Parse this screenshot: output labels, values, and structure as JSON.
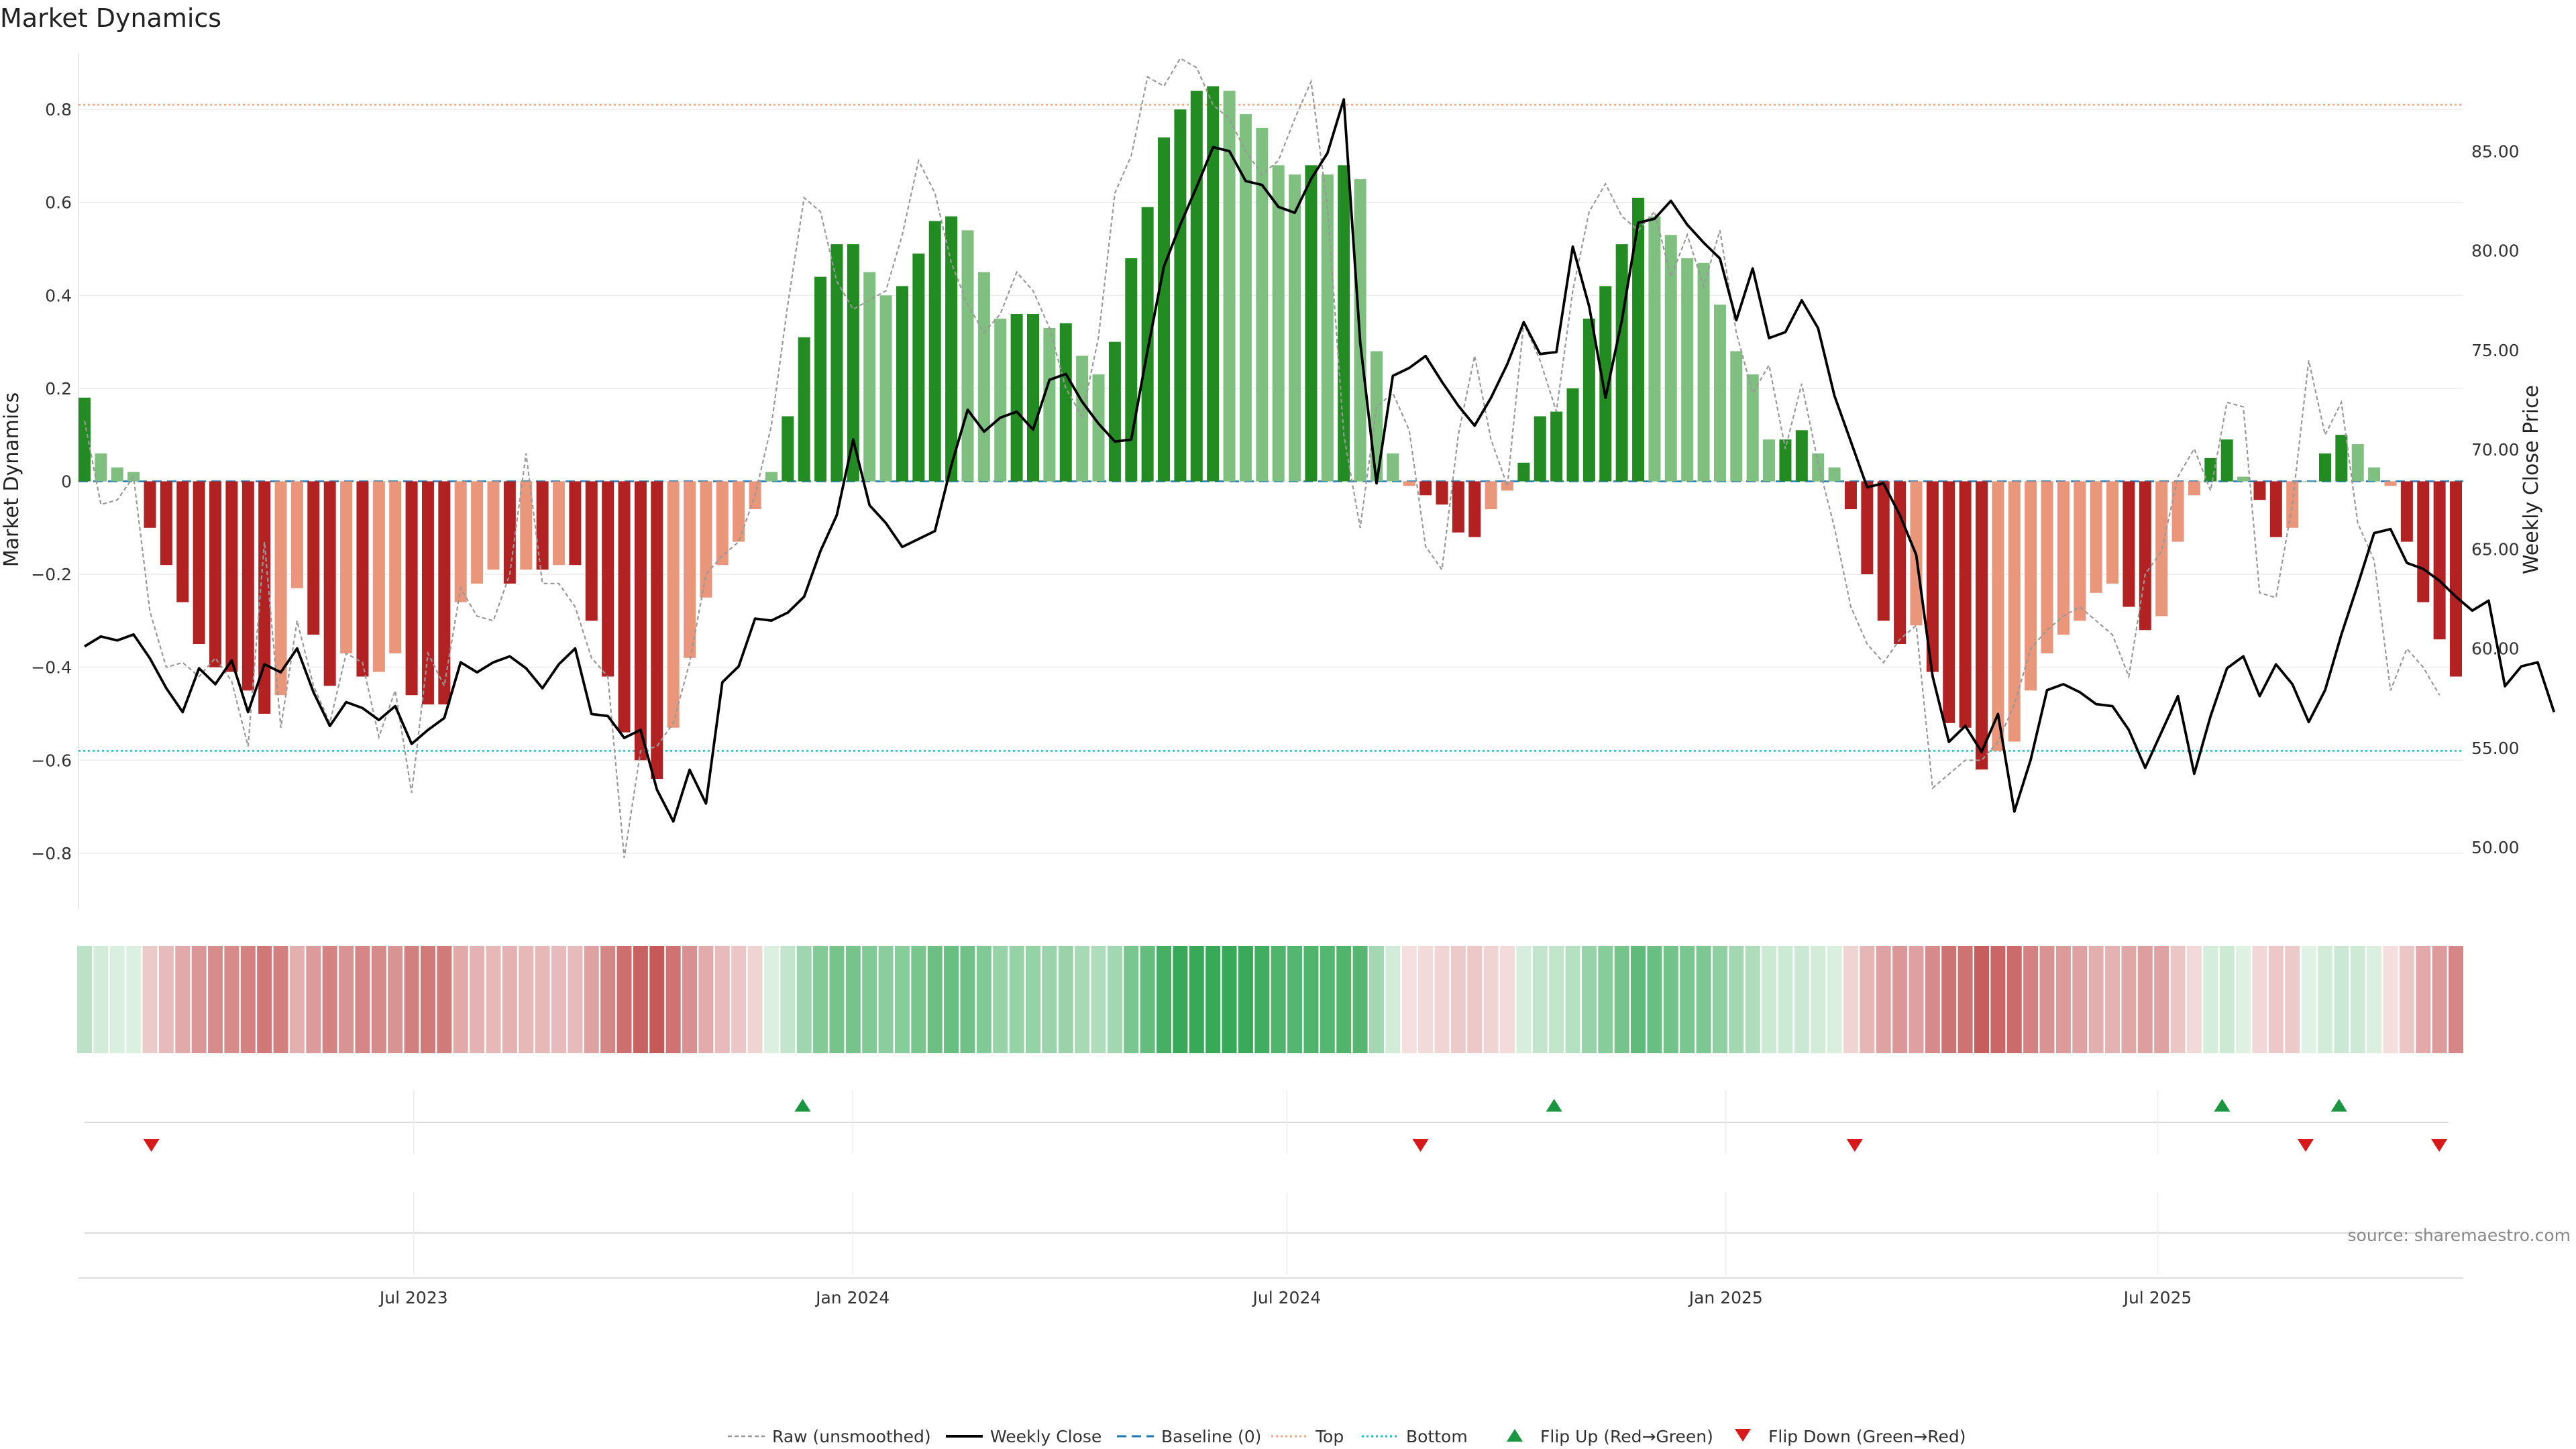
{
  "chart_data": {
    "type": "bar",
    "title": "Market Dynamics",
    "ylabel": "Market Dynamics",
    "y2label": "Weekly Close Price",
    "source": "source: sharemaestro.com",
    "ylim": [
      -0.92,
      0.92
    ],
    "y2lim": [
      46.9,
      89.9
    ],
    "yticks": [
      "−0.8",
      "−0.6",
      "−0.4",
      "−0.2",
      "0",
      "0.2",
      "0.4",
      "0.6",
      "0.8"
    ],
    "y2ticks": [
      "50.00",
      "55.00",
      "60.00",
      "65.00",
      "70.00",
      "75.00",
      "80.00",
      "85.00"
    ],
    "x_start": "2023-02-13",
    "x_end": "2025-11-03",
    "xticks": [
      {
        "date": "2023-07-01",
        "label": "Jul 2023"
      },
      {
        "date": "2024-01-01",
        "label": "Jan 2024"
      },
      {
        "date": "2024-07-01",
        "label": "Jul 2024"
      },
      {
        "date": "2025-01-01",
        "label": "Jan 2025"
      },
      {
        "date": "2025-07-01",
        "label": "Jul 2025"
      }
    ],
    "top_line": 0.81,
    "bottom_line": -0.58,
    "baseline": 0,
    "colors": {
      "strong_up": "#228B22",
      "weak_up": "#7fbf7f",
      "strong_down": "#b22222",
      "weak_down": "#e9967a",
      "close": "#000000",
      "raw": "#999999",
      "baseline": "#1f77b4",
      "top": "#f4a582",
      "bottom": "#17becf",
      "flip_up": "#1a9641",
      "flip_down": "#d7191c"
    },
    "bars": [
      0.18,
      0.06,
      0.03,
      0.02,
      -0.1,
      -0.18,
      -0.26,
      -0.35,
      -0.4,
      -0.41,
      -0.45,
      -0.5,
      -0.46,
      -0.23,
      -0.33,
      -0.44,
      -0.37,
      -0.42,
      -0.41,
      -0.37,
      -0.46,
      -0.48,
      -0.48,
      -0.26,
      -0.22,
      -0.19,
      -0.22,
      -0.19,
      -0.19,
      -0.18,
      -0.18,
      -0.3,
      -0.42,
      -0.54,
      -0.6,
      -0.64,
      -0.53,
      -0.38,
      -0.25,
      -0.18,
      -0.13,
      -0.06,
      0.02,
      0.14,
      0.31,
      0.44,
      0.51,
      0.51,
      0.45,
      0.4,
      0.42,
      0.49,
      0.56,
      0.57,
      0.54,
      0.45,
      0.35,
      0.36,
      0.36,
      0.33,
      0.34,
      0.27,
      0.23,
      0.3,
      0.48,
      0.59,
      0.74,
      0.8,
      0.84,
      0.85,
      0.84,
      0.79,
      0.76,
      0.68,
      0.66,
      0.68,
      0.66,
      0.68,
      0.65,
      0.28,
      0.06,
      -0.01,
      -0.03,
      -0.05,
      -0.11,
      -0.12,
      -0.06,
      -0.02,
      0.04,
      0.14,
      0.15,
      0.2,
      0.35,
      0.42,
      0.51,
      0.61,
      0.57,
      0.53,
      0.48,
      0.47,
      0.38,
      0.28,
      0.23,
      0.09,
      0.09,
      0.11,
      0.06,
      0.03,
      -0.06,
      -0.2,
      -0.3,
      -0.35,
      -0.31,
      -0.41,
      -0.52,
      -0.53,
      -0.62,
      -0.58,
      -0.56,
      -0.45,
      -0.37,
      -0.33,
      -0.3,
      -0.24,
      -0.22,
      -0.27,
      -0.32,
      -0.29,
      -0.13,
      -0.03,
      0.05,
      0.09,
      0.01,
      -0.04,
      -0.12,
      -0.1,
      0.0,
      0.06,
      0.1,
      0.08,
      0.03,
      -0.01,
      -0.13,
      -0.26,
      -0.34,
      -0.42
    ],
    "close": [
      60.1,
      60.6,
      60.4,
      60.7,
      59.5,
      58.0,
      56.8,
      59.0,
      58.2,
      59.4,
      56.8,
      59.2,
      58.8,
      60.0,
      57.8,
      56.1,
      57.3,
      57.0,
      56.4,
      57.1,
      55.2,
      55.9,
      56.5,
      59.3,
      58.8,
      59.3,
      59.6,
      59.0,
      58.0,
      59.2,
      60.0,
      56.7,
      56.6,
      55.5,
      55.9,
      52.9,
      51.3,
      53.9,
      52.2,
      58.3,
      59.1,
      61.5,
      61.4,
      61.8,
      62.6,
      64.9,
      66.7,
      70.5,
      67.2,
      66.3,
      65.1,
      65.5,
      65.9,
      69.2,
      72.0,
      70.9,
      71.6,
      71.9,
      71.0,
      73.5,
      73.8,
      72.4,
      71.3,
      70.4,
      70.5,
      75.0,
      79.2,
      81.3,
      83.2,
      85.2,
      85.0,
      83.5,
      83.3,
      82.2,
      81.9,
      83.6,
      84.9,
      87.6,
      75.4,
      68.3,
      73.7,
      74.1,
      74.7,
      73.4,
      72.2,
      71.2,
      72.6,
      74.3,
      76.4,
      74.8,
      74.9,
      80.2,
      77.2,
      72.6,
      76.5,
      81.4,
      81.6,
      82.5,
      81.3,
      80.4,
      79.6,
      76.5,
      79.1,
      75.6,
      75.9,
      77.5,
      76.1,
      72.7,
      70.4,
      68.1,
      68.3,
      66.7,
      64.7,
      58.6,
      55.3,
      56.1,
      54.8,
      56.7,
      51.8,
      54.4,
      57.9,
      58.2,
      57.8,
      57.2,
      57.1,
      55.9,
      54.0,
      55.8,
      57.6,
      53.7,
      56.6,
      59.0,
      59.6,
      57.6,
      59.2,
      58.2,
      56.3,
      57.9,
      60.7,
      63.2,
      65.8,
      66.0,
      64.3,
      64.0,
      63.4,
      62.6,
      61.9,
      62.4,
      58.1,
      59.1,
      59.3,
      56.8
    ],
    "raw": [
      0.13,
      -0.05,
      -0.04,
      0.01,
      -0.28,
      -0.4,
      -0.39,
      -0.42,
      -0.38,
      -0.43,
      -0.57,
      -0.13,
      -0.53,
      -0.3,
      -0.44,
      -0.52,
      -0.37,
      -0.39,
      -0.55,
      -0.45,
      -0.67,
      -0.37,
      -0.44,
      -0.23,
      -0.29,
      -0.3,
      -0.2,
      0.06,
      -0.22,
      -0.22,
      -0.27,
      -0.38,
      -0.42,
      -0.81,
      -0.58,
      -0.57,
      -0.52,
      -0.39,
      -0.2,
      -0.16,
      -0.13,
      -0.03,
      0.12,
      0.38,
      0.61,
      0.58,
      0.43,
      0.37,
      0.39,
      0.41,
      0.53,
      0.69,
      0.62,
      0.47,
      0.38,
      0.32,
      0.36,
      0.45,
      0.41,
      0.33,
      0.2,
      0.14,
      0.31,
      0.62,
      0.7,
      0.87,
      0.85,
      0.91,
      0.89,
      0.81,
      0.78,
      0.71,
      0.66,
      0.69,
      0.78,
      0.86,
      0.59,
      0.1,
      -0.1,
      0.16,
      0.19,
      0.11,
      -0.14,
      -0.19,
      0.1,
      0.27,
      0.09,
      -0.01,
      0.34,
      0.26,
      0.15,
      0.41,
      0.58,
      0.64,
      0.57,
      0.54,
      0.58,
      0.44,
      0.53,
      0.42,
      0.54,
      0.32,
      0.19,
      0.25,
      0.07,
      0.21,
      0.04,
      -0.1,
      -0.27,
      -0.35,
      -0.39,
      -0.34,
      -0.31,
      -0.66,
      -0.63,
      -0.6,
      -0.6,
      -0.56,
      -0.48,
      -0.36,
      -0.32,
      -0.29,
      -0.27,
      -0.3,
      -0.33,
      -0.42,
      -0.2,
      -0.15,
      0.01,
      0.07,
      -0.02,
      0.17,
      0.16,
      -0.24,
      -0.25,
      -0.05,
      0.26,
      0.1,
      0.17,
      -0.09,
      -0.17,
      -0.45,
      -0.36,
      -0.4,
      -0.46
    ],
    "flip_up": [
      "2023-12-11",
      "2024-10-21",
      "2025-07-28",
      "2025-09-15"
    ],
    "flip_down": [
      "2023-03-13",
      "2024-08-26",
      "2025-02-24",
      "2025-09-01",
      "2025-10-27"
    ],
    "legend": [
      {
        "label": "Raw (unsmoothed)",
        "kind": "raw"
      },
      {
        "label": "Weekly Close",
        "kind": "close"
      },
      {
        "label": "Baseline (0)",
        "kind": "baseline"
      },
      {
        "label": "Top",
        "kind": "top"
      },
      {
        "label": "Bottom",
        "kind": "bottom"
      },
      {
        "label": "Flip Up (Red→Green)",
        "kind": "flip_up"
      },
      {
        "label": "Flip Down (Green→Red)",
        "kind": "flip_down"
      }
    ]
  }
}
